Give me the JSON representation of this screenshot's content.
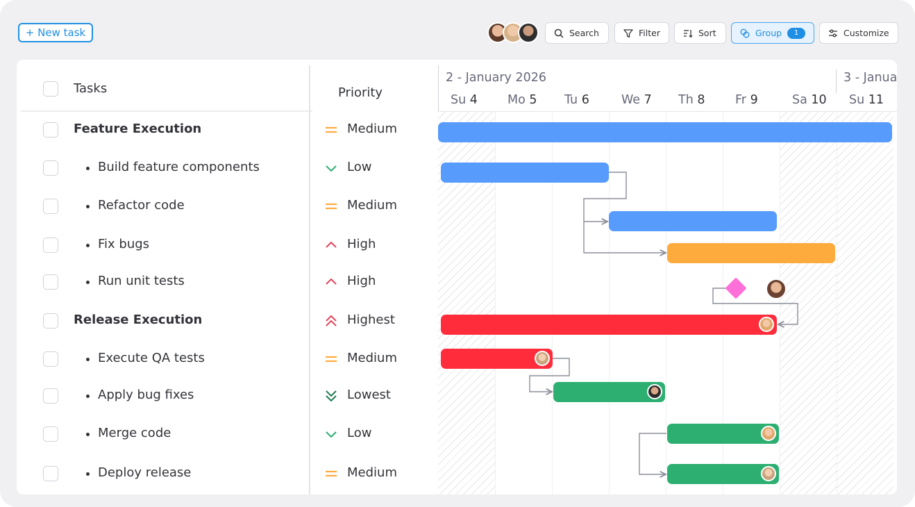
{
  "toolbar": {
    "new_task_label": "+ New task",
    "search_label": "Search",
    "filter_label": "Filter",
    "sort_label": "Sort",
    "group_label": "Group",
    "group_count": "1",
    "customize_label": "Customize"
  },
  "columns": {
    "tasks": "Tasks",
    "priority": "Priority"
  },
  "tasks": [
    {
      "name": "Feature Execution",
      "priority": "Medium",
      "group": true,
      "start_day": 4,
      "end_day": 11,
      "color": "#579bfc"
    },
    {
      "name": "Build feature components",
      "priority": "Low",
      "group": false,
      "start_day": 4,
      "end_day": 6,
      "color": "#579bfc"
    },
    {
      "name": "Refactor code",
      "priority": "Medium",
      "group": false,
      "start_day": 7,
      "end_day": 9,
      "color": "#579bfc"
    },
    {
      "name": "Fix bugs",
      "priority": "High",
      "group": false,
      "start_day": 8,
      "end_day": 10,
      "color": "#fdab3d"
    },
    {
      "name": "Run unit tests",
      "priority": "High",
      "group": false,
      "milestone_day": 9,
      "color": "#ff6fd8"
    },
    {
      "name": "Release Execution",
      "priority": "Highest",
      "group": true,
      "start_day": 4,
      "end_day": 9,
      "color": "#ff2d3c"
    },
    {
      "name": "Execute QA tests",
      "priority": "Medium",
      "group": false,
      "start_day": 4,
      "end_day": 5,
      "color": "#ff2d3c"
    },
    {
      "name": "Apply bug fixes",
      "priority": "Lowest",
      "group": false,
      "start_day": 6,
      "end_day": 7,
      "color": "#2daf72"
    },
    {
      "name": "Merge code",
      "priority": "Low",
      "group": false,
      "start_day": 8,
      "end_day": 9,
      "color": "#2daf72"
    },
    {
      "name": "Deploy release",
      "priority": "Medium",
      "group": false,
      "start_day": 8,
      "end_day": 9,
      "color": "#2daf72"
    }
  ],
  "timeline": {
    "months": [
      "2 - January 2026",
      "3 - Janua"
    ],
    "days": [
      {
        "dow": "Su",
        "num": "4"
      },
      {
        "dow": "Mo",
        "num": "5"
      },
      {
        "dow": "Tu",
        "num": "6"
      },
      {
        "dow": "We",
        "num": "7"
      },
      {
        "dow": "Th",
        "num": "8"
      },
      {
        "dow": "Fr",
        "num": "9"
      },
      {
        "dow": "Sa",
        "num": "10"
      },
      {
        "dow": "Su",
        "num": "11"
      }
    ]
  },
  "colors": {
    "accent": "#1f8fe5",
    "medium": "#fdab3d",
    "low": "#2daf72",
    "high": "#e2445c",
    "highest": "#e2445c",
    "lowest": "#1f7a52"
  }
}
